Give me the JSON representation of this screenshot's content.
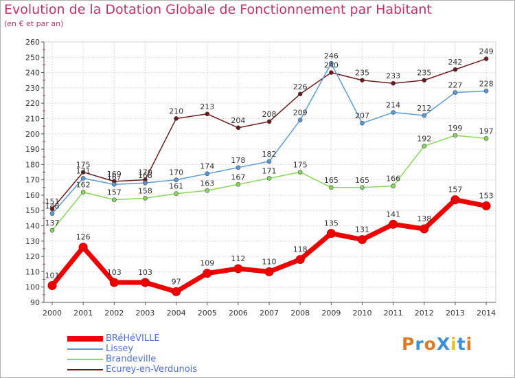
{
  "header": {
    "title": "Evolution de la Dotation Globale de Fonctionnement par Habitant",
    "subtitle": "(en € et par an)"
  },
  "logo": {
    "text": "ProXiti",
    "colors": [
      "#e07a1f",
      "#3a8fd6",
      "#e07a1f",
      "#3a8fd6",
      "#e2c21f",
      "#3a8fd6",
      "#e07a1f"
    ]
  },
  "chart_data": {
    "type": "line",
    "title": "Evolution de la Dotation Globale de Fonctionnement par Habitant",
    "subtitle": "(en € et par an)",
    "xlabel": "",
    "ylabel": "",
    "ylim": [
      90,
      260
    ],
    "ytick_step": 10,
    "grid": true,
    "legend_position": "bottom-left",
    "x": [
      "2000",
      "2001",
      "2002",
      "2003",
      "2004",
      "2005",
      "2006",
      "2007",
      "2008",
      "2009",
      "2010",
      "2011",
      "2012",
      "2013",
      "2014"
    ],
    "series": [
      {
        "name": "BRéHéVILLE",
        "color": "#ee0000",
        "values": [
          101,
          126,
          103,
          103,
          97,
          109,
          112,
          110,
          118,
          135,
          131,
          141,
          138,
          157,
          153
        ]
      },
      {
        "name": "Lissey",
        "color": "#5a9ad6",
        "values": [
          148,
          171,
          167,
          168,
          170,
          174,
          178,
          182,
          209,
          246,
          207,
          214,
          212,
          227,
          228
        ]
      },
      {
        "name": "Brandeville",
        "color": "#88d858",
        "values": [
          137,
          162,
          157,
          158,
          161,
          163,
          167,
          171,
          175,
          165,
          165,
          166,
          192,
          199,
          197
        ]
      },
      {
        "name": "Ecurey-en-Verdunois",
        "color": "#6e1a1a",
        "values": [
          151,
          175,
          169,
          170,
          210,
          213,
          204,
          208,
          226,
          240,
          235,
          233,
          235,
          242,
          249
        ]
      }
    ]
  }
}
